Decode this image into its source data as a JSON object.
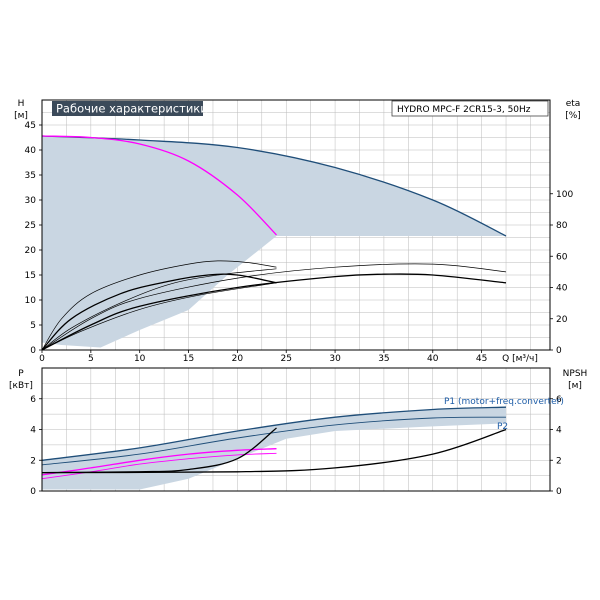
{
  "title": "Рабочие характеристики",
  "model_label": "HYDRO MPC-F 2CR15-3, 50Hz",
  "colors": {
    "band": "#c9d6e2",
    "dark_blue": "#1f4e79",
    "magenta": "#ff00ff",
    "black": "#000000",
    "grid": "#bbbbbb",
    "title_bg": "#3b4a5a",
    "label_blue": "#1f5ea8"
  },
  "chart_data": [
    {
      "type": "line",
      "name": "head-eta-chart",
      "xlabel": "Q [м³/ч]",
      "ylabel_lines": [
        "H",
        "[м]"
      ],
      "y2label_lines": [
        "eta",
        "[%]"
      ],
      "xlim": [
        0,
        52
      ],
      "ylim": [
        0,
        50
      ],
      "y2lim": [
        0,
        160
      ],
      "x_ticks": [
        0,
        5,
        10,
        15,
        20,
        25,
        30,
        35,
        40,
        45
      ],
      "y_ticks": [
        0,
        5,
        10,
        15,
        20,
        25,
        30,
        35,
        40,
        45
      ],
      "y2_ticks": [
        0,
        20,
        40,
        60,
        80,
        100
      ],
      "grid": true,
      "band": {
        "upper": [
          [
            0,
            42.8
          ],
          [
            10,
            42
          ],
          [
            20,
            40.5
          ],
          [
            30,
            36.5
          ],
          [
            40,
            30
          ],
          [
            47.5,
            22.8
          ]
        ],
        "lower": [
          [
            47.5,
            22.8
          ],
          [
            24,
            22.8
          ],
          [
            19,
            15
          ],
          [
            15,
            8
          ],
          [
            10,
            4
          ],
          [
            6,
            0.5
          ],
          [
            2,
            1
          ],
          [
            0,
            1.5
          ]
        ]
      },
      "series": [
        {
          "role": "dark-blue",
          "points": [
            [
              0,
              42.8
            ],
            [
              10,
              42
            ],
            [
              20,
              40.5
            ],
            [
              30,
              36.5
            ],
            [
              40,
              30
            ],
            [
              47.5,
              22.8
            ]
          ]
        },
        {
          "role": "magenta",
          "points": [
            [
              0,
              42.8
            ],
            [
              5,
              42.5
            ],
            [
              10,
              41.2
            ],
            [
              15,
              37.8
            ],
            [
              20,
              31
            ],
            [
              24,
              23
            ]
          ]
        },
        {
          "role": "black-thin",
          "axis": "y2",
          "points": [
            [
              0,
              0
            ],
            [
              2,
              20
            ],
            [
              5,
              36
            ],
            [
              10,
              48
            ],
            [
              15,
              55
            ],
            [
              18,
              57
            ],
            [
              21,
              56
            ],
            [
              24,
              53
            ]
          ]
        },
        {
          "role": "black-thin",
          "axis": "y2",
          "points": [
            [
              0,
              0
            ],
            [
              3,
              14
            ],
            [
              8,
              30
            ],
            [
              13,
              42
            ],
            [
              18,
              48
            ],
            [
              24,
              52
            ]
          ]
        },
        {
          "role": "black-thin",
          "axis": "y2",
          "points": [
            [
              0,
              0
            ],
            [
              4,
              12
            ],
            [
              10,
              26
            ],
            [
              16,
              35
            ],
            [
              24,
              43
            ]
          ]
        },
        {
          "role": "black",
          "axis": "y2",
          "points": [
            [
              0,
              0
            ],
            [
              3,
              20
            ],
            [
              8,
              36
            ],
            [
              13,
              44
            ],
            [
              17,
              48
            ],
            [
              20,
              48
            ],
            [
              24,
              43
            ]
          ]
        },
        {
          "role": "black-thin",
          "axis": "y2",
          "points": [
            [
              0,
              0
            ],
            [
              5,
              20
            ],
            [
              10,
              33
            ],
            [
              20,
              46
            ],
            [
              30,
              53
            ],
            [
              40,
              55
            ],
            [
              47.5,
              50
            ]
          ]
        },
        {
          "role": "black",
          "axis": "y2",
          "points": [
            [
              0,
              0
            ],
            [
              5,
              16
            ],
            [
              10,
              28
            ],
            [
              20,
              40
            ],
            [
              30,
              47
            ],
            [
              35,
              48.5
            ],
            [
              40,
              48
            ],
            [
              47.5,
              43
            ]
          ]
        }
      ]
    },
    {
      "type": "line",
      "name": "power-npsh-chart",
      "ylabel_lines": [
        "P",
        "[кВт]"
      ],
      "y2label_lines": [
        "NPSH",
        "[м]"
      ],
      "xlim": [
        0,
        52
      ],
      "ylim": [
        0,
        8
      ],
      "y2lim": [
        0,
        8
      ],
      "y_ticks": [
        0,
        2,
        4,
        6
      ],
      "y2_ticks": [
        0,
        2,
        4,
        6
      ],
      "grid": true,
      "band": {
        "upper": [
          [
            0,
            2
          ],
          [
            10,
            2.8
          ],
          [
            20,
            3.9
          ],
          [
            30,
            4.8
          ],
          [
            40,
            5.3
          ],
          [
            47.5,
            5.45
          ]
        ],
        "lower": [
          [
            47.5,
            5.45
          ],
          [
            47.5,
            4.4
          ],
          [
            40,
            4.2
          ],
          [
            30,
            3.9
          ],
          [
            25,
            3.4
          ],
          [
            20,
            2.1
          ],
          [
            15,
            0.8
          ],
          [
            10,
            0.1
          ],
          [
            0,
            0.1
          ]
        ]
      },
      "series": [
        {
          "role": "dark-blue",
          "name": "P1 (motor+freq.converter)",
          "points": [
            [
              0,
              2
            ],
            [
              10,
              2.8
            ],
            [
              20,
              3.9
            ],
            [
              30,
              4.8
            ],
            [
              40,
              5.3
            ],
            [
              47.5,
              5.45
            ]
          ]
        },
        {
          "role": "dark-blue-thin",
          "name": "P2",
          "points": [
            [
              0,
              1.7
            ],
            [
              10,
              2.4
            ],
            [
              20,
              3.45
            ],
            [
              30,
              4.3
            ],
            [
              40,
              4.75
            ],
            [
              47.5,
              4.8
            ]
          ]
        },
        {
          "role": "magenta",
          "points": [
            [
              0,
              1.05
            ],
            [
              5,
              1.5
            ],
            [
              10,
              2.0
            ],
            [
              15,
              2.4
            ],
            [
              20,
              2.65
            ],
            [
              24,
              2.75
            ]
          ]
        },
        {
          "role": "magenta-thin",
          "points": [
            [
              0,
              0.8
            ],
            [
              5,
              1.25
            ],
            [
              10,
              1.75
            ],
            [
              15,
              2.1
            ],
            [
              20,
              2.35
            ],
            [
              24,
              2.45
            ]
          ]
        },
        {
          "role": "black",
          "axis": "y2",
          "points": [
            [
              0,
              1.2
            ],
            [
              10,
              1.25
            ],
            [
              15,
              1.4
            ],
            [
              20,
              2.1
            ],
            [
              24,
              4.1
            ]
          ]
        },
        {
          "role": "black",
          "axis": "y2",
          "points": [
            [
              0,
              1.2
            ],
            [
              20,
              1.25
            ],
            [
              30,
              1.5
            ],
            [
              40,
              2.4
            ],
            [
              47.5,
              4
            ]
          ]
        }
      ]
    }
  ]
}
